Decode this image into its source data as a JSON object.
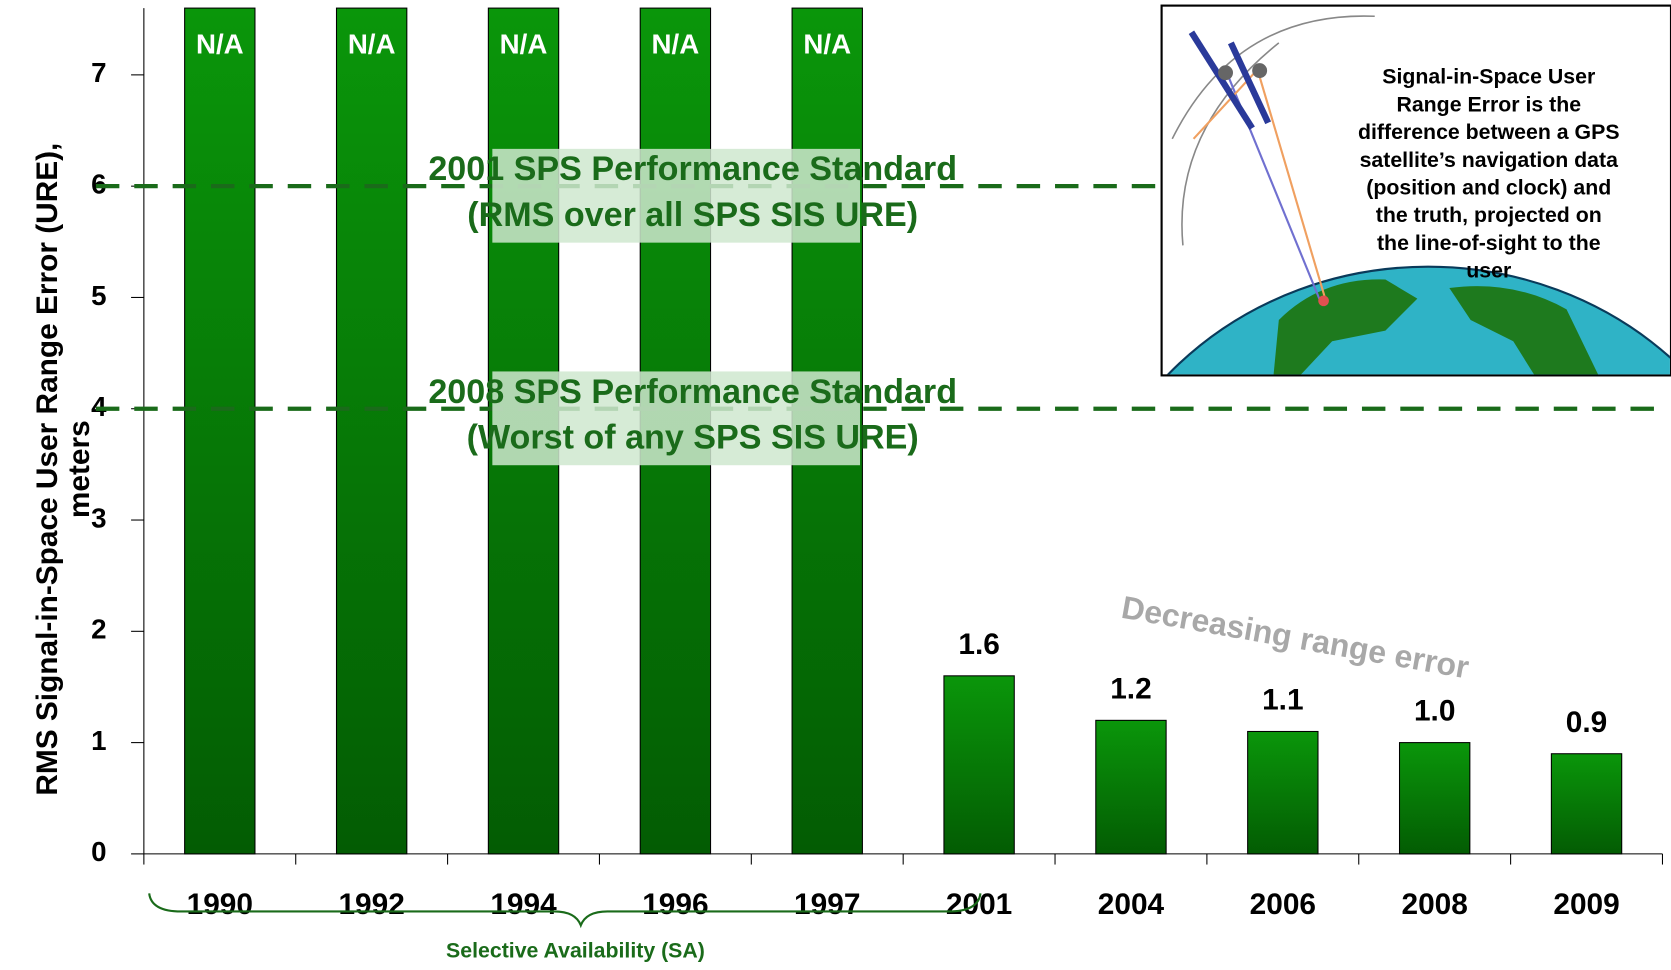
{
  "chart_data": {
    "type": "bar",
    "ylabel": [
      "RMS Signal-in-Space User Range Error (URE),",
      "meters"
    ],
    "categories": [
      "1990",
      "1992",
      "1994",
      "1996",
      "1997",
      "2001",
      "2004",
      "2006",
      "2008",
      "2009"
    ],
    "values": [
      null,
      null,
      null,
      null,
      null,
      1.6,
      1.2,
      1.1,
      1.0,
      0.9
    ],
    "value_labels": [
      "N/A",
      "N/A",
      "N/A",
      "N/A",
      "N/A",
      "1.6",
      "1.2",
      "1.1",
      "1.0",
      "0.9"
    ],
    "color": "#0a960a",
    "ylim": [
      0,
      7.6
    ],
    "yticks": [
      0,
      1,
      2,
      3,
      4,
      5,
      6,
      7
    ],
    "reference_lines": [
      {
        "value": 6,
        "label": [
          "2001 SPS Performance Standard",
          "(RMS over all SPS SIS URE)"
        ]
      },
      {
        "value": 4,
        "label": [
          "2008 SPS Performance Standard",
          "(Worst of any SPS SIS URE)"
        ]
      }
    ],
    "reference_color": "#1a6b1a",
    "annotations": {
      "trend": "Decreasing range error",
      "era": "Selective Availability (SA)"
    },
    "inset_text": [
      "Signal-in-Space User",
      "Range Error is the",
      "difference between a GPS",
      "satellite’s navigation data",
      "(position and clock) and",
      "the truth, projected on",
      "the line-of-sight to the",
      "user"
    ]
  }
}
